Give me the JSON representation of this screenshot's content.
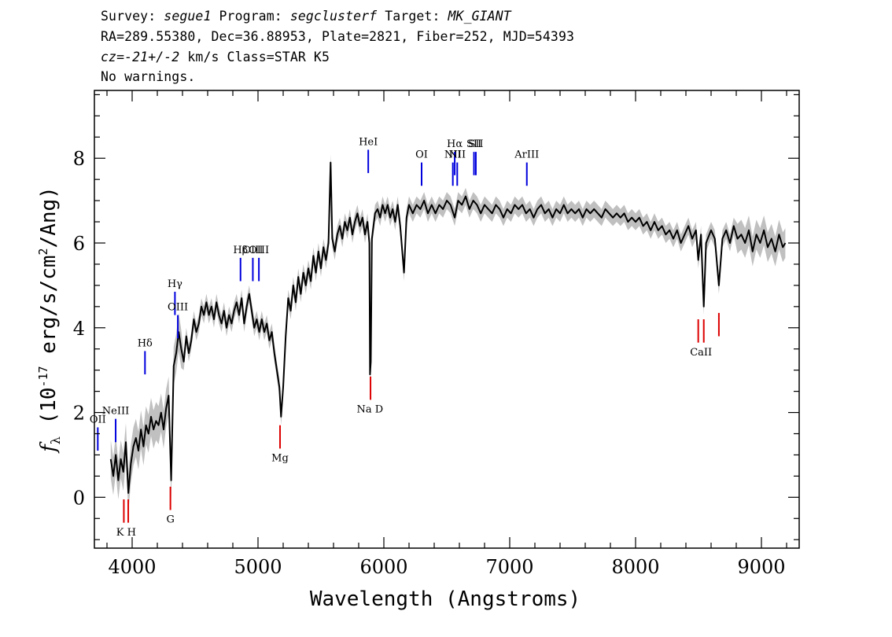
{
  "header": {
    "line1": {
      "p1": "Survey: ",
      "survey": "segue1",
      "p2": " Program: ",
      "program": "segclusterf",
      "p3": " Target: ",
      "target": "MK_GIANT"
    },
    "line2": "RA=289.55380, Dec=36.88953, Plate=2821, Fiber=252, MJD=54393",
    "line3": {
      "cz": "cz=",
      "val": "-21+/-2",
      "rest": " km/s Class=STAR K5"
    },
    "line4": "No warnings."
  },
  "chart_data": {
    "type": "line",
    "xlabel": "Wavelength (Angstroms)",
    "ylabel": "f_λ (10^-17 erg/s/cm^2/Ang)",
    "xlim": [
      3700,
      9300
    ],
    "ylim": [
      -1.2,
      9.6
    ],
    "x_ticks": [
      4000,
      5000,
      6000,
      7000,
      8000,
      9000
    ],
    "y_ticks": [
      0,
      2,
      4,
      6,
      8
    ],
    "colors": {
      "spectrum": "#000000",
      "noise": "#c0c0c0",
      "emission": "#0000dd",
      "absorption": "#dd0000"
    },
    "series": [
      {
        "name": "flux",
        "points": [
          [
            3830,
            0.9
          ],
          [
            3850,
            0.5
          ],
          [
            3870,
            1.0
          ],
          [
            3890,
            0.4
          ],
          [
            3910,
            0.9
          ],
          [
            3930,
            0.6
          ],
          [
            3950,
            1.3
          ],
          [
            3970,
            0.1
          ],
          [
            3990,
            0.8
          ],
          [
            4010,
            1.2
          ],
          [
            4030,
            1.4
          ],
          [
            4050,
            1.1
          ],
          [
            4070,
            1.6
          ],
          [
            4090,
            1.2
          ],
          [
            4110,
            1.7
          ],
          [
            4130,
            1.5
          ],
          [
            4150,
            1.9
          ],
          [
            4170,
            1.6
          ],
          [
            4190,
            1.8
          ],
          [
            4210,
            1.7
          ],
          [
            4230,
            2.0
          ],
          [
            4250,
            1.6
          ],
          [
            4270,
            2.1
          ],
          [
            4290,
            2.4
          ],
          [
            4310,
            0.4
          ],
          [
            4330,
            3.1
          ],
          [
            4350,
            3.4
          ],
          [
            4370,
            3.9
          ],
          [
            4390,
            3.5
          ],
          [
            4410,
            3.2
          ],
          [
            4430,
            3.8
          ],
          [
            4450,
            3.4
          ],
          [
            4470,
            3.7
          ],
          [
            4490,
            4.2
          ],
          [
            4510,
            3.9
          ],
          [
            4530,
            4.1
          ],
          [
            4550,
            4.5
          ],
          [
            4570,
            4.3
          ],
          [
            4590,
            4.6
          ],
          [
            4610,
            4.3
          ],
          [
            4630,
            4.5
          ],
          [
            4650,
            4.2
          ],
          [
            4670,
            4.6
          ],
          [
            4690,
            4.3
          ],
          [
            4710,
            4.1
          ],
          [
            4730,
            4.4
          ],
          [
            4750,
            4.0
          ],
          [
            4770,
            4.3
          ],
          [
            4790,
            4.1
          ],
          [
            4810,
            4.4
          ],
          [
            4830,
            4.6
          ],
          [
            4850,
            4.3
          ],
          [
            4870,
            4.7
          ],
          [
            4890,
            4.1
          ],
          [
            4910,
            4.5
          ],
          [
            4930,
            4.8
          ],
          [
            4950,
            4.4
          ],
          [
            4970,
            4.0
          ],
          [
            4990,
            4.2
          ],
          [
            5010,
            3.9
          ],
          [
            5030,
            4.2
          ],
          [
            5050,
            3.9
          ],
          [
            5070,
            4.1
          ],
          [
            5090,
            3.7
          ],
          [
            5110,
            3.9
          ],
          [
            5130,
            3.4
          ],
          [
            5150,
            3.0
          ],
          [
            5170,
            2.6
          ],
          [
            5183,
            1.9
          ],
          [
            5200,
            2.6
          ],
          [
            5220,
            3.8
          ],
          [
            5240,
            4.7
          ],
          [
            5260,
            4.4
          ],
          [
            5280,
            5.0
          ],
          [
            5300,
            4.6
          ],
          [
            5320,
            5.2
          ],
          [
            5340,
            4.8
          ],
          [
            5360,
            5.3
          ],
          [
            5380,
            5.0
          ],
          [
            5400,
            5.4
          ],
          [
            5420,
            5.1
          ],
          [
            5440,
            5.7
          ],
          [
            5460,
            5.3
          ],
          [
            5480,
            5.8
          ],
          [
            5500,
            5.4
          ],
          [
            5520,
            5.9
          ],
          [
            5540,
            5.6
          ],
          [
            5560,
            6.0
          ],
          [
            5577,
            7.9
          ],
          [
            5590,
            6.1
          ],
          [
            5610,
            5.8
          ],
          [
            5630,
            6.2
          ],
          [
            5650,
            6.4
          ],
          [
            5670,
            6.1
          ],
          [
            5690,
            6.5
          ],
          [
            5710,
            6.3
          ],
          [
            5730,
            6.6
          ],
          [
            5750,
            6.2
          ],
          [
            5770,
            6.5
          ],
          [
            5790,
            6.7
          ],
          [
            5810,
            6.4
          ],
          [
            5830,
            6.6
          ],
          [
            5850,
            6.2
          ],
          [
            5870,
            6.5
          ],
          [
            5885,
            6.0
          ],
          [
            5890,
            2.9
          ],
          [
            5896,
            3.2
          ],
          [
            5905,
            6.1
          ],
          [
            5930,
            6.7
          ],
          [
            5950,
            6.8
          ],
          [
            5970,
            6.6
          ],
          [
            5990,
            6.9
          ],
          [
            6010,
            6.7
          ],
          [
            6030,
            6.9
          ],
          [
            6050,
            6.6
          ],
          [
            6070,
            6.8
          ],
          [
            6090,
            6.5
          ],
          [
            6110,
            6.9
          ],
          [
            6130,
            6.4
          ],
          [
            6160,
            5.3
          ],
          [
            6180,
            6.6
          ],
          [
            6200,
            6.9
          ],
          [
            6230,
            6.7
          ],
          [
            6260,
            6.9
          ],
          [
            6290,
            6.8
          ],
          [
            6320,
            7.0
          ],
          [
            6350,
            6.7
          ],
          [
            6380,
            6.9
          ],
          [
            6410,
            6.7
          ],
          [
            6440,
            6.9
          ],
          [
            6470,
            6.8
          ],
          [
            6500,
            7.0
          ],
          [
            6530,
            6.9
          ],
          [
            6563,
            6.6
          ],
          [
            6590,
            7.0
          ],
          [
            6620,
            6.9
          ],
          [
            6650,
            7.1
          ],
          [
            6680,
            6.8
          ],
          [
            6710,
            7.0
          ],
          [
            6740,
            6.9
          ],
          [
            6770,
            6.7
          ],
          [
            6800,
            6.9
          ],
          [
            6830,
            6.8
          ],
          [
            6860,
            6.7
          ],
          [
            6890,
            6.9
          ],
          [
            6920,
            6.8
          ],
          [
            6950,
            6.6
          ],
          [
            6980,
            6.8
          ],
          [
            7010,
            6.7
          ],
          [
            7040,
            6.9
          ],
          [
            7070,
            6.8
          ],
          [
            7100,
            6.9
          ],
          [
            7130,
            6.7
          ],
          [
            7160,
            6.8
          ],
          [
            7190,
            6.6
          ],
          [
            7220,
            6.8
          ],
          [
            7250,
            6.9
          ],
          [
            7280,
            6.7
          ],
          [
            7310,
            6.8
          ],
          [
            7340,
            6.6
          ],
          [
            7370,
            6.8
          ],
          [
            7400,
            6.7
          ],
          [
            7430,
            6.9
          ],
          [
            7460,
            6.7
          ],
          [
            7490,
            6.8
          ],
          [
            7520,
            6.7
          ],
          [
            7550,
            6.8
          ],
          [
            7580,
            6.6
          ],
          [
            7610,
            6.8
          ],
          [
            7640,
            6.7
          ],
          [
            7670,
            6.8
          ],
          [
            7700,
            6.7
          ],
          [
            7730,
            6.6
          ],
          [
            7760,
            6.8
          ],
          [
            7790,
            6.7
          ],
          [
            7820,
            6.6
          ],
          [
            7850,
            6.7
          ],
          [
            7880,
            6.6
          ],
          [
            7910,
            6.7
          ],
          [
            7940,
            6.5
          ],
          [
            7970,
            6.6
          ],
          [
            8000,
            6.5
          ],
          [
            8030,
            6.6
          ],
          [
            8060,
            6.4
          ],
          [
            8090,
            6.5
          ],
          [
            8120,
            6.3
          ],
          [
            8150,
            6.5
          ],
          [
            8180,
            6.3
          ],
          [
            8210,
            6.4
          ],
          [
            8240,
            6.2
          ],
          [
            8270,
            6.3
          ],
          [
            8300,
            6.1
          ],
          [
            8330,
            6.3
          ],
          [
            8360,
            6.0
          ],
          [
            8390,
            6.2
          ],
          [
            8420,
            6.4
          ],
          [
            8450,
            6.1
          ],
          [
            8480,
            6.3
          ],
          [
            8498,
            5.6
          ],
          [
            8520,
            6.2
          ],
          [
            8542,
            4.5
          ],
          [
            8560,
            6.0
          ],
          [
            8600,
            6.3
          ],
          [
            8630,
            6.1
          ],
          [
            8662,
            5.0
          ],
          [
            8690,
            6.1
          ],
          [
            8720,
            6.3
          ],
          [
            8750,
            6.0
          ],
          [
            8780,
            6.4
          ],
          [
            8810,
            6.1
          ],
          [
            8840,
            6.2
          ],
          [
            8870,
            6.0
          ],
          [
            8900,
            6.3
          ],
          [
            8930,
            5.8
          ],
          [
            8960,
            6.2
          ],
          [
            8990,
            6.0
          ],
          [
            9020,
            6.3
          ],
          [
            9050,
            5.9
          ],
          [
            9080,
            6.1
          ],
          [
            9110,
            5.8
          ],
          [
            9140,
            6.2
          ],
          [
            9170,
            5.9
          ],
          [
            9190,
            6.0
          ]
        ]
      }
    ],
    "emission_lines": [
      {
        "name": "OII",
        "x": 3727,
        "y0": 1.1,
        "y1": 1.65,
        "label_y": 1.65
      },
      {
        "name": "NeIII",
        "x": 3869,
        "y0": 1.3,
        "y1": 1.85,
        "label_y": 1.85
      },
      {
        "name": "Hδ",
        "x": 4102,
        "y0": 2.9,
        "y1": 3.45,
        "label_y": 3.45
      },
      {
        "name": "Hγ",
        "x": 4340,
        "y0": 4.3,
        "y1": 4.85,
        "label_y": 4.85
      },
      {
        "name": "OIII",
        "x": 4363,
        "y0": 3.75,
        "y1": 4.3,
        "label_y": 4.3
      },
      {
        "name": "Hβ",
        "x": 4861,
        "y0": 5.1,
        "y1": 5.65,
        "label_y": 5.65
      },
      {
        "name": "OIII",
        "x": 4959,
        "y0": 5.1,
        "y1": 5.65,
        "label_y": 5.65
      },
      {
        "name": "OIII",
        "x": 5007,
        "y0": 5.1,
        "y1": 5.65,
        "label_y": 5.65
      },
      {
        "name": "HeI",
        "x": 5876,
        "y0": 7.65,
        "y1": 8.2,
        "label_y": 8.2
      },
      {
        "name": "OI",
        "x": 6300,
        "y0": 7.35,
        "y1": 7.9,
        "label_y": 7.9
      },
      {
        "name": "NII",
        "x": 6548,
        "y0": 7.35,
        "y1": 7.9,
        "label_y": 7.9
      },
      {
        "name": "Hα",
        "x": 6563,
        "y0": 7.6,
        "y1": 8.15,
        "label_y": 8.15
      },
      {
        "name": "NII",
        "x": 6583,
        "y0": 7.35,
        "y1": 7.9,
        "label_y": 7.9
      },
      {
        "name": "SII",
        "x": 6716,
        "y0": 7.6,
        "y1": 8.15,
        "label_y": 8.15
      },
      {
        "name": "SII",
        "x": 6731,
        "y0": 7.6,
        "y1": 8.15,
        "label_y": 8.15
      },
      {
        "name": "ArIII",
        "x": 7136,
        "y0": 7.35,
        "y1": 7.9,
        "label_y": 7.9
      }
    ],
    "absorption_lines": [
      {
        "name": "K",
        "x": 3934,
        "y0": -0.6,
        "y1": -0.05
      },
      {
        "name": "H",
        "x": 3969,
        "y0": -0.6,
        "y1": -0.05
      },
      {
        "name": "G",
        "x": 4304,
        "y0": -0.3,
        "y1": 0.25
      },
      {
        "name": "Mg",
        "x": 5175,
        "y0": 1.15,
        "y1": 1.7
      },
      {
        "name": "Na D",
        "x": 5894,
        "y0": 2.3,
        "y1": 2.85
      },
      {
        "name": "CaII",
        "x": 8498,
        "y0": 3.65,
        "y1": 4.2
      },
      {
        "name": "CaII",
        "x": 8542,
        "y0": 3.65,
        "y1": 4.2
      },
      {
        "name": "CaII",
        "x": 8662,
        "y0": 3.8,
        "y1": 4.35
      }
    ],
    "absorption_labels": [
      {
        "text": "K H",
        "x": 3952,
        "y": -0.9
      },
      {
        "text": "G",
        "x": 4304,
        "y": -0.6
      },
      {
        "text": "Mg",
        "x": 5175,
        "y": 0.85
      },
      {
        "text": "Na D",
        "x": 5890,
        "y": 2.0
      },
      {
        "text": "CaII",
        "x": 8520,
        "y": 3.35
      }
    ]
  }
}
